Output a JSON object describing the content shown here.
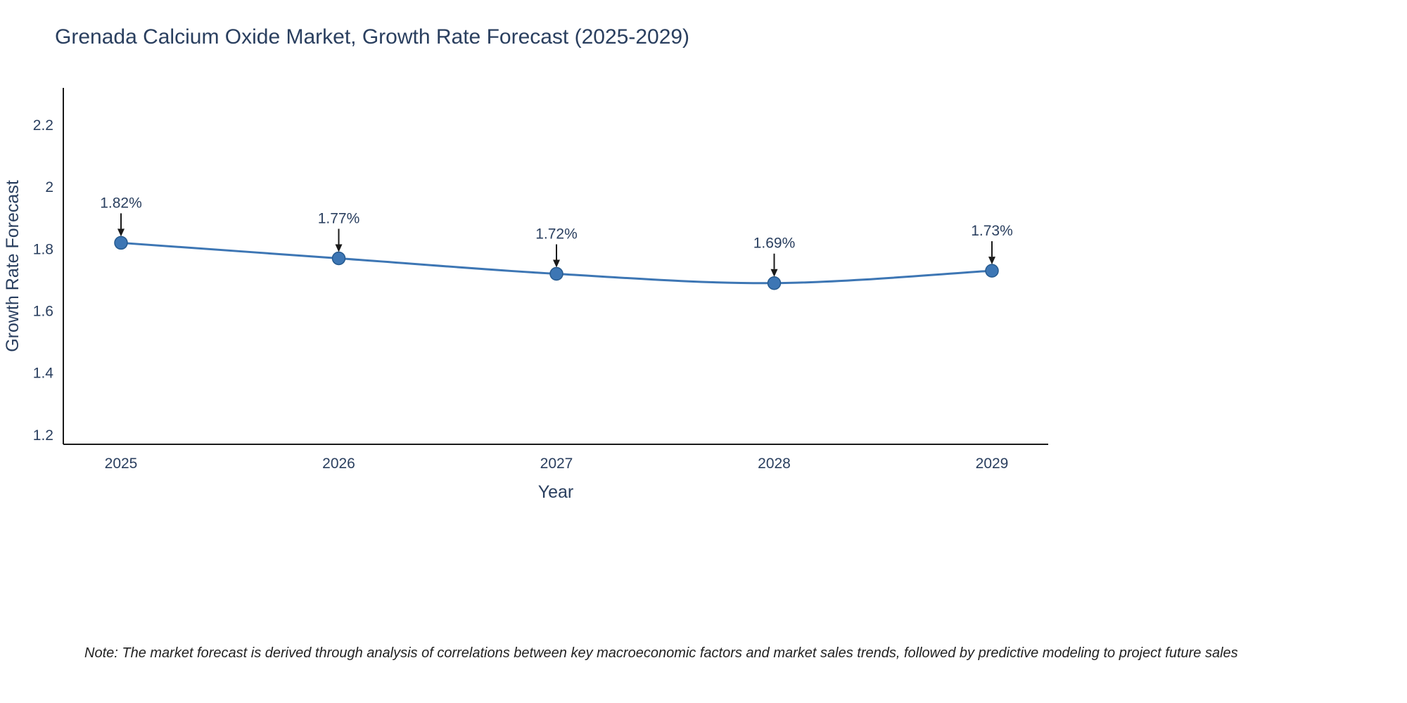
{
  "title": "Grenada Calcium Oxide Market, Growth Rate Forecast (2025-2029)",
  "note": "Note: The market forecast is derived through analysis of correlations between key macroeconomic factors and market sales trends, followed by predictive modeling to project future sales",
  "chart_data": {
    "type": "line",
    "title": "Grenada Calcium Oxide Market, Growth Rate Forecast (2025-2029)",
    "categories": [
      "2025",
      "2026",
      "2027",
      "2028",
      "2029"
    ],
    "values": [
      1.82,
      1.77,
      1.72,
      1.69,
      1.73
    ],
    "labels": [
      "1.82%",
      "1.77%",
      "1.72%",
      "1.69%",
      "1.73%"
    ],
    "xlabel": "Year",
    "ylabel": "Growth Rate Forecast",
    "yticks": [
      1.2,
      1.4,
      1.6,
      1.8,
      2,
      2.2
    ],
    "ytick_labels": [
      "1.2",
      "1.4",
      "1.6",
      "1.8",
      "2",
      "2.2"
    ],
    "ylim": [
      1.17,
      2.32
    ],
    "grid": false,
    "legend": false,
    "line_color": "#3d76b4",
    "marker_color": "#3d76b4",
    "marker_edge_color": "#265a8f",
    "axis_color": "#1a1a1a",
    "text_color": "#2a3f5f",
    "annotation_color": "#1a1a1a"
  }
}
